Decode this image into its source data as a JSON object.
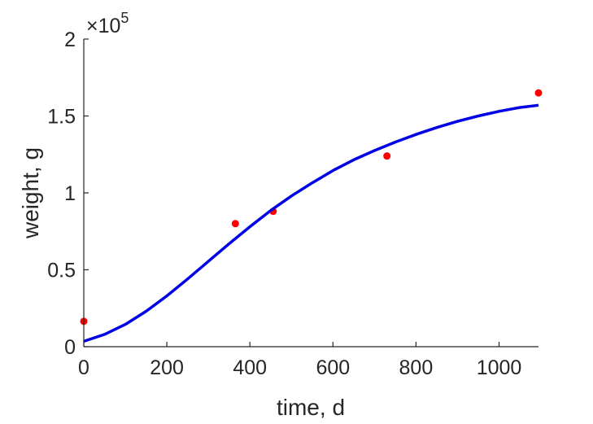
{
  "chart_data": {
    "type": "scatter",
    "title": "",
    "xlabel": "time, d",
    "ylabel": "weight, g",
    "xlim": [
      0,
      1095
    ],
    "ylim": [
      0,
      200000
    ],
    "xticks": [
      0,
      200,
      400,
      600,
      800,
      1000
    ],
    "yticks": [
      0,
      50000,
      100000,
      150000,
      200000
    ],
    "xtick_labels": [
      "0",
      "200",
      "400",
      "600",
      "800",
      "1000"
    ],
    "ytick_labels": [
      "0",
      "0.5",
      "1",
      "1.5",
      "2"
    ],
    "y_exponent_base": "×10",
    "y_exponent_power": "5",
    "grid": false,
    "series": [
      {
        "kind": "scatter",
        "color": "#ff0000",
        "x": [
          0,
          365,
          456,
          730,
          1095
        ],
        "y": [
          16500,
          80000,
          88000,
          124000,
          165000
        ]
      },
      {
        "kind": "line",
        "color": "#0000e6",
        "x": [
          0,
          50,
          100,
          150,
          200,
          250,
          300,
          350,
          400,
          450,
          500,
          550,
          600,
          650,
          700,
          750,
          800,
          850,
          900,
          950,
          1000,
          1050,
          1095
        ],
        "y": [
          3500,
          8000,
          14500,
          23000,
          33000,
          44000,
          55500,
          67000,
          78000,
          88500,
          98000,
          106500,
          114500,
          121500,
          127500,
          133000,
          138000,
          142500,
          146500,
          150000,
          153000,
          155500,
          157000
        ]
      }
    ]
  }
}
